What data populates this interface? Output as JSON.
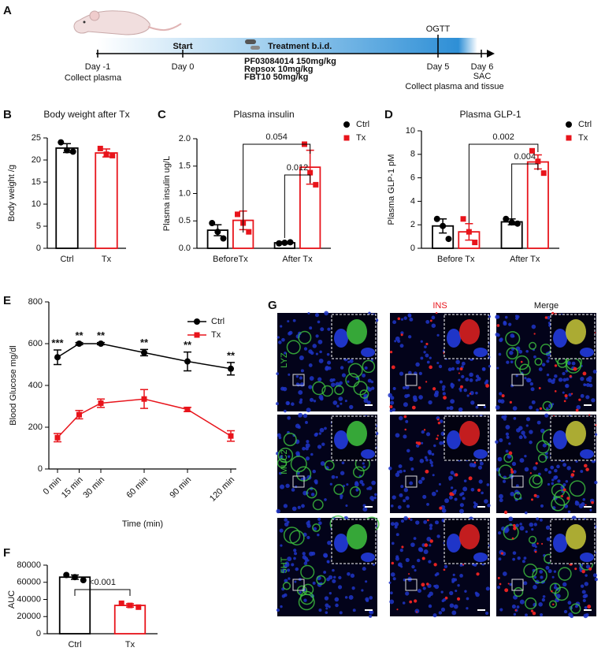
{
  "timeline": {
    "panel": "A",
    "start": "Start",
    "treatment": "Treatment b.i.d.",
    "drugs": [
      "PF03084014 150mg/kg",
      "Repsox 10mg/kg",
      "FBT10 50mg/kg"
    ],
    "ogtt": "OGTT",
    "days": [
      "Day -1",
      "Day 0",
      "Day 5",
      "Day 6"
    ],
    "day_notes": [
      "Collect plasma",
      "SAC",
      "Collect plasma and tissue"
    ]
  },
  "chart_data": [
    {
      "panel": "B",
      "type": "bar",
      "title": "Body weight after Tx",
      "ylabel": "Body weight /g",
      "categories": [
        "Ctrl",
        "Tx"
      ],
      "values": [
        22.7,
        21.6
      ],
      "errors": [
        1.0,
        0.9
      ],
      "points": [
        [
          24.0,
          22.2,
          21.9
        ],
        [
          22.6,
          21.3,
          21.0
        ]
      ],
      "colors": [
        "#000000",
        "#e8141b"
      ],
      "ylim": [
        0,
        25
      ],
      "yticks": [
        0,
        5,
        10,
        15,
        20,
        25
      ]
    },
    {
      "panel": "C",
      "type": "bar",
      "title": "Plasma insulin",
      "ylabel": "Plasma insulin ug/L",
      "categories": [
        "BeforeTx",
        "After Tx"
      ],
      "series": [
        {
          "name": "Ctrl",
          "color": "#000000",
          "values": [
            0.33,
            0.1
          ],
          "errors": [
            0.1,
            0.02
          ],
          "points": [
            [
              0.46,
              0.3,
              0.18
            ],
            [
              0.09,
              0.1,
              0.11
            ]
          ]
        },
        {
          "name": "Tx",
          "color": "#e8141b",
          "values": [
            0.51,
            1.48
          ],
          "errors": [
            0.17,
            0.31
          ],
          "points": [
            [
              0.62,
              0.46,
              0.3
            ],
            [
              1.9,
              1.38,
              1.16
            ]
          ]
        }
      ],
      "ylim": [
        0,
        2
      ],
      "yticks": [
        {
          "value": 0,
          "label": "0.0"
        },
        0.5,
        {
          "value": 1,
          "label": "1.0"
        },
        1.5,
        {
          "value": 2,
          "label": "2.0"
        }
      ],
      "annotations": [
        "0.054",
        "0.012"
      ],
      "legend": "upper right"
    },
    {
      "panel": "D",
      "type": "bar",
      "title": "Plasma GLP-1",
      "ylabel": "Plasma GLP-1 pM",
      "categories": [
        "Before Tx",
        "After Tx"
      ],
      "series": [
        {
          "name": "Ctrl",
          "color": "#000000",
          "values": [
            1.9,
            2.25
          ],
          "errors": [
            0.6,
            0.25
          ],
          "points": [
            [
              2.5,
              1.9,
              0.8
            ],
            [
              2.5,
              2.2,
              2.1
            ]
          ]
        },
        {
          "name": "Tx",
          "color": "#e8141b",
          "values": [
            1.4,
            7.35
          ],
          "errors": [
            0.7,
            0.6
          ],
          "points": [
            [
              2.5,
              1.4,
              0.5
            ],
            [
              8.3,
              7.4,
              6.4
            ]
          ]
        }
      ],
      "ylim": [
        0,
        10
      ],
      "yticks": [
        0,
        2,
        4,
        6,
        8,
        10
      ],
      "annotations": [
        "0.002",
        "0.004"
      ],
      "legend": "upper right"
    },
    {
      "panel": "E",
      "type": "line",
      "ylabel": "Blood Glucose mg/dl",
      "xlabel": "Time (min)",
      "x": [
        0,
        15,
        30,
        60,
        90,
        120
      ],
      "xlim": [
        0,
        120
      ],
      "xticks": [
        {
          "value": 0,
          "label": "0 min"
        },
        {
          "value": 15,
          "label": "15 min"
        },
        {
          "value": 30,
          "label": "30 min"
        },
        {
          "value": 60,
          "label": "60 min"
        },
        {
          "value": 90,
          "label": "90 min"
        },
        {
          "value": 120,
          "label": "120 min"
        }
      ],
      "series": [
        {
          "name": "Ctrl",
          "color": "#000000",
          "values": [
            535,
            600,
            600,
            557,
            515,
            480
          ],
          "errors": [
            35,
            5,
            5,
            15,
            45,
            30
          ]
        },
        {
          "name": "Tx",
          "color": "#e8141b",
          "values": [
            150,
            260,
            315,
            335,
            285,
            158
          ],
          "errors": [
            20,
            20,
            20,
            45,
            10,
            25
          ]
        }
      ],
      "ylim": [
        0,
        800
      ],
      "yticks": [
        0,
        200,
        400,
        600,
        800
      ],
      "annotations": [
        "***",
        "**",
        "**",
        "**",
        "**",
        "**"
      ],
      "legend": "upper right"
    },
    {
      "panel": "F",
      "type": "bar",
      "ylabel": "AUC",
      "categories": [
        "Ctrl",
        "Tx"
      ],
      "values": [
        66000,
        33000
      ],
      "errors": [
        2500,
        2000
      ],
      "points": [
        [
          68500,
          66000,
          62500
        ],
        [
          35500,
          33000,
          31000
        ]
      ],
      "colors": [
        "#000000",
        "#e8141b"
      ],
      "ylim": [
        0,
        80000
      ],
      "yticks": [
        0,
        20000,
        40000,
        60000,
        80000
      ],
      "annotations": [
        "<0.001"
      ]
    }
  ],
  "micrographs": {
    "panel": "G",
    "columns": [
      "INS",
      "Merge"
    ],
    "rows": [
      "LYZ",
      "MUC2",
      "5HT"
    ]
  }
}
